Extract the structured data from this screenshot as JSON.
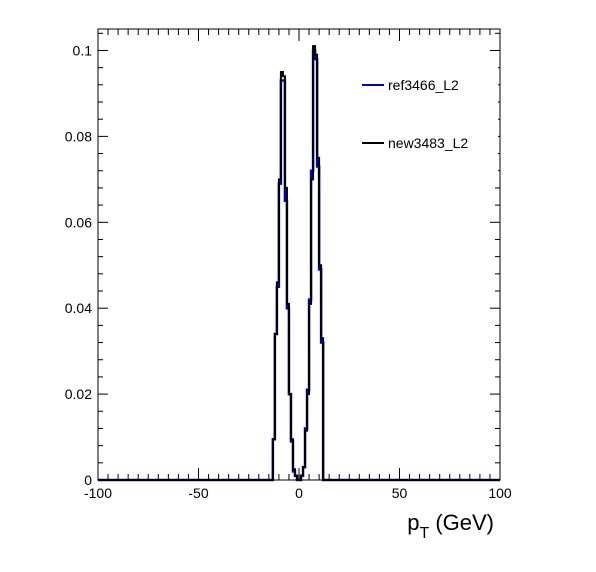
{
  "chart_data": {
    "type": "line",
    "xlabel": "p_T (GeV)",
    "xlabel_main": "p",
    "xlabel_sub": "T",
    "xlabel_unit": "(GeV)",
    "xlim": [
      -100,
      100
    ],
    "ylim": [
      0,
      0.105
    ],
    "x_ticks": [
      -100,
      -50,
      0,
      50,
      100
    ],
    "x_tick_labels": [
      "-100",
      "-50",
      "0",
      "50",
      "100"
    ],
    "y_ticks": [
      0,
      0.02,
      0.04,
      0.06,
      0.08,
      0.1
    ],
    "y_tick_labels": [
      "0",
      "0.02",
      "0.04",
      "0.06",
      "0.08",
      "0.1"
    ],
    "grid": false,
    "legend_position": "top-right",
    "bin_edges": [
      -14,
      -13,
      -12,
      -11,
      -10,
      -9,
      -8,
      -7,
      -6,
      -5,
      -4,
      -3,
      -2,
      -1,
      0,
      1,
      2,
      3,
      4,
      5,
      6,
      7,
      8,
      9,
      10,
      11,
      12,
      13,
      14
    ],
    "series": [
      {
        "name": "ref3466_L2",
        "color": "#0000cc",
        "values": [
          0.0,
          0.0095,
          0.034,
          0.045,
          0.069,
          0.093,
          0.093,
          0.065,
          0.04,
          0.02,
          0.009,
          0.002,
          0.001,
          0.0,
          0.0,
          0.001,
          0.003,
          0.012,
          0.021,
          0.042,
          0.072,
          0.1,
          0.098,
          0.073,
          0.049,
          0.032,
          0.0,
          0.0
        ]
      },
      {
        "name": "new3483_L2",
        "color": "#000000",
        "values": [
          0.0,
          0.0095,
          0.034,
          0.046,
          0.07,
          0.095,
          0.094,
          0.068,
          0.041,
          0.02,
          0.0095,
          0.0025,
          0.001,
          0.0,
          0.0,
          0.001,
          0.003,
          0.0115,
          0.02,
          0.041,
          0.07,
          0.101,
          0.099,
          0.075,
          0.05,
          0.033,
          0.0,
          0.0
        ]
      }
    ]
  }
}
